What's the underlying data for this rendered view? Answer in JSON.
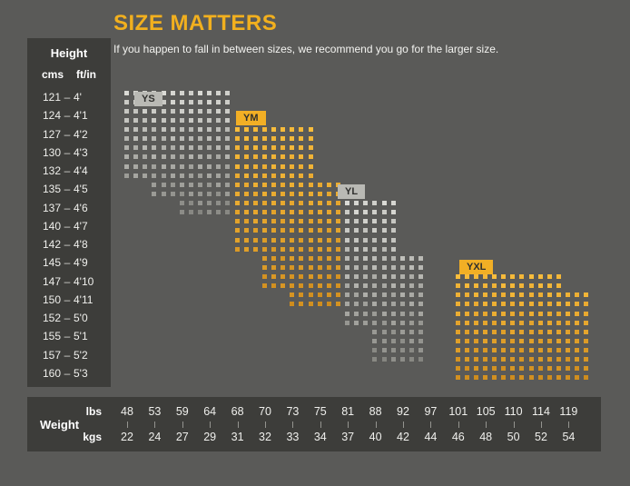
{
  "page": {
    "background": "#5a5a58",
    "panel_background": "#3d3d3a"
  },
  "header": {
    "title": "SIZE MATTERS",
    "subtitle": "If you happen to fall in between sizes, we recommend you go for the larger size.",
    "title_color": "#f2b01e"
  },
  "height_panel": {
    "title": "Height",
    "unit_primary": "cms",
    "unit_secondary": "ft/in",
    "separator": "–",
    "rows": [
      {
        "cms": "121",
        "ftin": "4'"
      },
      {
        "cms": "124",
        "ftin": "4'1"
      },
      {
        "cms": "127",
        "ftin": "4'2"
      },
      {
        "cms": "130",
        "ftin": "4'3"
      },
      {
        "cms": "132",
        "ftin": "4'4"
      },
      {
        "cms": "135",
        "ftin": "4'5"
      },
      {
        "cms": "137",
        "ftin": "4'6"
      },
      {
        "cms": "140",
        "ftin": "4'7"
      },
      {
        "cms": "142",
        "ftin": "4'8"
      },
      {
        "cms": "145",
        "ftin": "4'9"
      },
      {
        "cms": "147",
        "ftin": "4'10"
      },
      {
        "cms": "150",
        "ftin": "4'11"
      },
      {
        "cms": "152",
        "ftin": "5'0"
      },
      {
        "cms": "155",
        "ftin": "5'1"
      },
      {
        "cms": "157",
        "ftin": "5'2"
      },
      {
        "cms": "160",
        "ftin": "5'3"
      }
    ]
  },
  "weight_panel": {
    "title": "Weight",
    "unit_top": "lbs",
    "unit_bottom": "kgs",
    "lbs": [
      "48",
      "53",
      "59",
      "64",
      "68",
      "70",
      "73",
      "75",
      "81",
      "88",
      "92",
      "97",
      "101",
      "105",
      "110",
      "114",
      "119"
    ],
    "kgs": [
      "22",
      "24",
      "27",
      "29",
      "31",
      "32",
      "33",
      "34",
      "37",
      "40",
      "42",
      "44",
      "46",
      "48",
      "50",
      "52",
      "54"
    ]
  },
  "chart_data": {
    "type": "heatmap",
    "title": "SIZE MATTERS",
    "x_axis": {
      "label": "Weight",
      "units": [
        "lbs",
        "kgs"
      ],
      "lbs_ticks": [
        48,
        53,
        59,
        64,
        68,
        70,
        73,
        75,
        81,
        88,
        92,
        97,
        101,
        105,
        110,
        114,
        119
      ],
      "kgs_ticks": [
        22,
        24,
        27,
        29,
        31,
        32,
        33,
        34,
        37,
        40,
        42,
        44,
        46,
        48,
        50,
        52,
        54
      ]
    },
    "y_axis": {
      "label": "Height",
      "units": [
        "cms",
        "ft/in"
      ],
      "cms_ticks": [
        121,
        124,
        127,
        130,
        132,
        135,
        137,
        140,
        142,
        145,
        147,
        150,
        152,
        155,
        157,
        160
      ],
      "ftin_ticks": [
        "4'",
        "4'1",
        "4'2",
        "4'3",
        "4'4",
        "4'5",
        "4'6",
        "4'7",
        "4'8",
        "4'9",
        "4'10",
        "4'11",
        "5'0",
        "5'1",
        "5'2",
        "5'3"
      ]
    },
    "cell_format": "[height_row_index, weight_col_start_index, weight_col_end_index]",
    "sizes": [
      {
        "label": "YS",
        "badge_bg": "#b9b9b4",
        "badge_text": "#2f2f2d",
        "dot_color_top": "#dadad5",
        "dot_color_bottom": "#82827d",
        "height_cms_range": [
          121,
          137
        ],
        "weight_lbs_range": [
          48,
          64
        ],
        "cells": [
          [
            0,
            0,
            3
          ],
          [
            1,
            0,
            3
          ],
          [
            2,
            0,
            3
          ],
          [
            3,
            0,
            3
          ],
          [
            4,
            0,
            3
          ],
          [
            5,
            1,
            3
          ],
          [
            6,
            2,
            3
          ]
        ]
      },
      {
        "label": "YM",
        "badge_bg": "#f2af25",
        "badge_text": "#2f2f2d",
        "dot_color_top": "#f9bd3c",
        "dot_color_bottom": "#cd8a1c",
        "height_cms_range": [
          127,
          150
        ],
        "weight_lbs_range": [
          68,
          75
        ],
        "cells": [
          [
            2,
            4,
            6
          ],
          [
            3,
            4,
            6
          ],
          [
            4,
            4,
            6
          ],
          [
            5,
            4,
            7
          ],
          [
            6,
            4,
            7
          ],
          [
            7,
            4,
            7
          ],
          [
            8,
            4,
            7
          ],
          [
            9,
            5,
            7
          ],
          [
            10,
            5,
            7
          ],
          [
            11,
            6,
            7
          ]
        ]
      },
      {
        "label": "YL",
        "badge_bg": "#b9b9b4",
        "badge_text": "#2f2f2d",
        "dot_color_top": "#dadad5",
        "dot_color_bottom": "#82827d",
        "height_cms_range": [
          137,
          157
        ],
        "weight_lbs_range": [
          81,
          92
        ],
        "cells": [
          [
            6,
            8,
            9
          ],
          [
            7,
            8,
            9
          ],
          [
            8,
            8,
            9
          ],
          [
            9,
            8,
            10
          ],
          [
            10,
            8,
            10
          ],
          [
            11,
            8,
            10
          ],
          [
            12,
            8,
            10
          ],
          [
            13,
            9,
            10
          ],
          [
            14,
            9,
            10
          ]
        ]
      },
      {
        "label": "YXL",
        "badge_bg": "#f2af25",
        "badge_text": "#2f2f2d",
        "dot_color_top": "#f9bd3c",
        "dot_color_bottom": "#cd8a1c",
        "height_cms_range": [
          147,
          160
        ],
        "weight_lbs_range": [
          97,
          119
        ],
        "cells": [
          [
            10,
            12,
            15
          ],
          [
            11,
            12,
            16
          ],
          [
            12,
            12,
            16
          ],
          [
            13,
            12,
            16
          ],
          [
            14,
            12,
            16
          ],
          [
            15,
            12,
            16
          ]
        ]
      }
    ]
  }
}
